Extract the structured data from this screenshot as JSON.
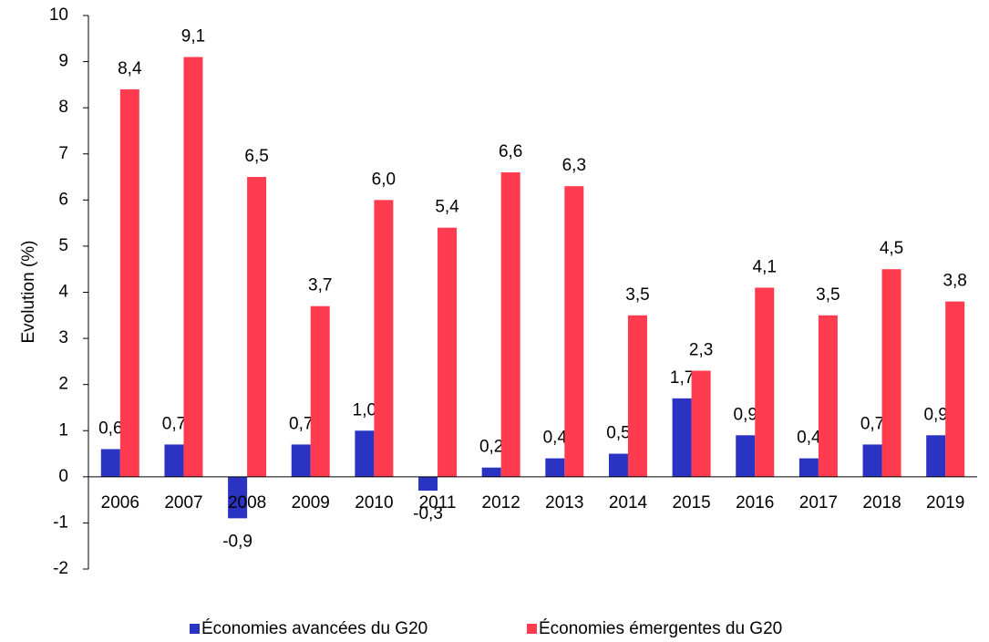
{
  "chart_data": {
    "type": "bar",
    "y_label": "Evolution (%)",
    "categories": [
      "2006",
      "2007",
      "2008",
      "2009",
      "2010",
      "2011",
      "2012",
      "2013",
      "2014",
      "2015",
      "2016",
      "2017",
      "2018",
      "2019"
    ],
    "series": [
      {
        "name": "Économies avancées du G20",
        "color": "#2b34c2",
        "values": [
          0.6,
          0.7,
          -0.9,
          0.7,
          1.0,
          -0.3,
          0.2,
          0.4,
          0.5,
          1.7,
          0.9,
          0.4,
          0.7,
          0.9
        ],
        "value_labels": [
          "0,6",
          "0,7",
          "-0,9",
          "0,7",
          "1,0",
          "-0,3",
          "0,2",
          "0,4",
          "0,5",
          "1,7",
          "0,9",
          "0,4",
          "0,7",
          "0,9"
        ]
      },
      {
        "name": "Économies émergentes du G20",
        "color": "#ff3b4f",
        "values": [
          8.4,
          9.1,
          6.5,
          3.7,
          6.0,
          5.4,
          6.6,
          6.3,
          3.5,
          2.3,
          4.1,
          3.5,
          4.5,
          3.8
        ],
        "value_labels": [
          "8,4",
          "9,1",
          "6,5",
          "3,7",
          "6,0",
          "5,4",
          "6,6",
          "6,3",
          "3,5",
          "2,3",
          "4,1",
          "3,5",
          "4,5",
          "3,8"
        ]
      }
    ],
    "ylim": [
      -2,
      10
    ],
    "yticks": [
      -2,
      -1,
      0,
      1,
      2,
      3,
      4,
      5,
      6,
      7,
      8,
      9,
      10
    ],
    "grid": false,
    "legend": "bottom"
  }
}
